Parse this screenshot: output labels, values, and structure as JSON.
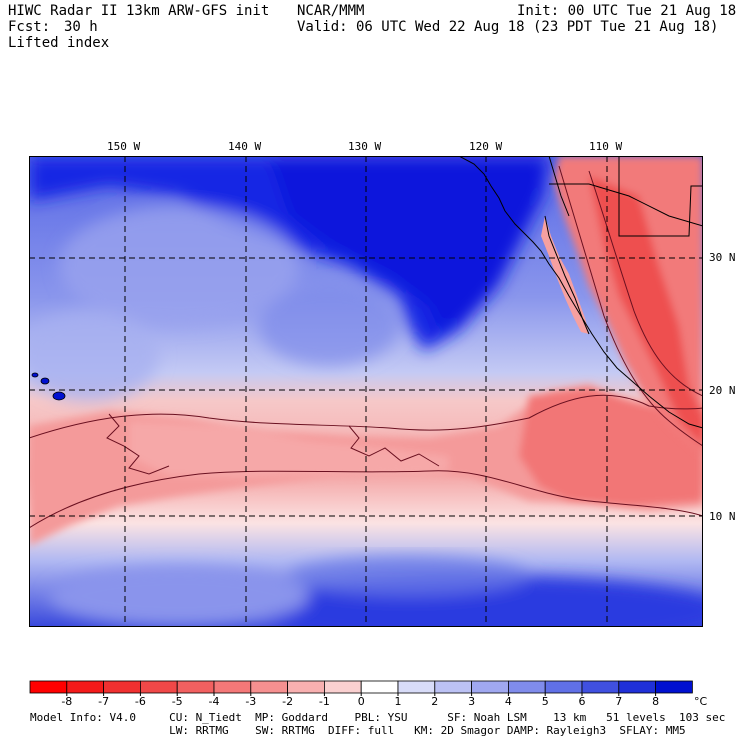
{
  "header": {
    "model_title": "HIWC Radar II 13km ARW-GFS init",
    "org": "NCAR/MMM",
    "init_time": "Init: 00 UTC Tue 21 Aug 18",
    "forecast_label": "Fcst:",
    "forecast_value": "30 h",
    "valid_time": "Valid: 06 UTC Wed 22 Aug 18 (23 PDT Tue 21 Aug 18)",
    "field_name": "Lifted index"
  },
  "map": {
    "longitude_labels": [
      "150 W",
      "140 W",
      "130 W",
      "120 W",
      "110 W"
    ],
    "latitude_labels": [
      "30 N",
      "20 N",
      "10 N"
    ],
    "colors": {
      "deep_blue": "#0a1ee0",
      "ocean_blue": "#7080e8",
      "pale_blue": "#c8cdf5",
      "pale_red": "#f8c5c5",
      "mid_red": "#f48080",
      "strong_red": "#f04040"
    }
  },
  "colorbar": {
    "tick_labels": [
      "-8",
      "-7",
      "-6",
      "-5",
      "-4",
      "-3",
      "-2",
      "-1",
      "0",
      "1",
      "2",
      "3",
      "4",
      "5",
      "6",
      "7",
      "8"
    ],
    "unit": "°C",
    "swatch_colors": [
      "#ff0000",
      "#f41a1a",
      "#f03030",
      "#f04848",
      "#f26060",
      "#f47878",
      "#f69090",
      "#f8b0b0",
      "#fad0d0",
      "#ffffff",
      "#d8dcf8",
      "#bcc2f4",
      "#a0a8f0",
      "#808ceb",
      "#6070e6",
      "#4050e0",
      "#2030d8",
      "#0010d0"
    ]
  },
  "footer": {
    "line1": "Model Info: V4.0     CU: N_Tiedt  MP: Goddard    PBL: YSU      SF: Noah LSM    13 km   51 levels  103 sec",
    "line2": "                     LW: RRTMG    SW: RRTMG  DIFF: full   KM: 2D Smagor DAMP: Rayleigh3  SFLAY: MM5"
  }
}
